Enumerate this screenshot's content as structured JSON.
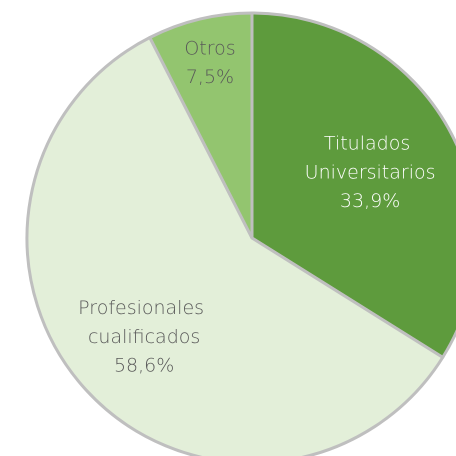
{
  "chart_data": {
    "type": "pie",
    "categories": [
      "Titulados Universitarios",
      "Profesionales cualificados",
      "Otros"
    ],
    "values": [
      33.9,
      58.6,
      7.5
    ],
    "value_labels": [
      "33,9%",
      "58,6%",
      "7,5%"
    ],
    "colors": [
      "#5e9b3d",
      "#e3efd9",
      "#93c56f"
    ],
    "label_colors": [
      "#ffffff",
      "#595959",
      "#595959"
    ]
  }
}
